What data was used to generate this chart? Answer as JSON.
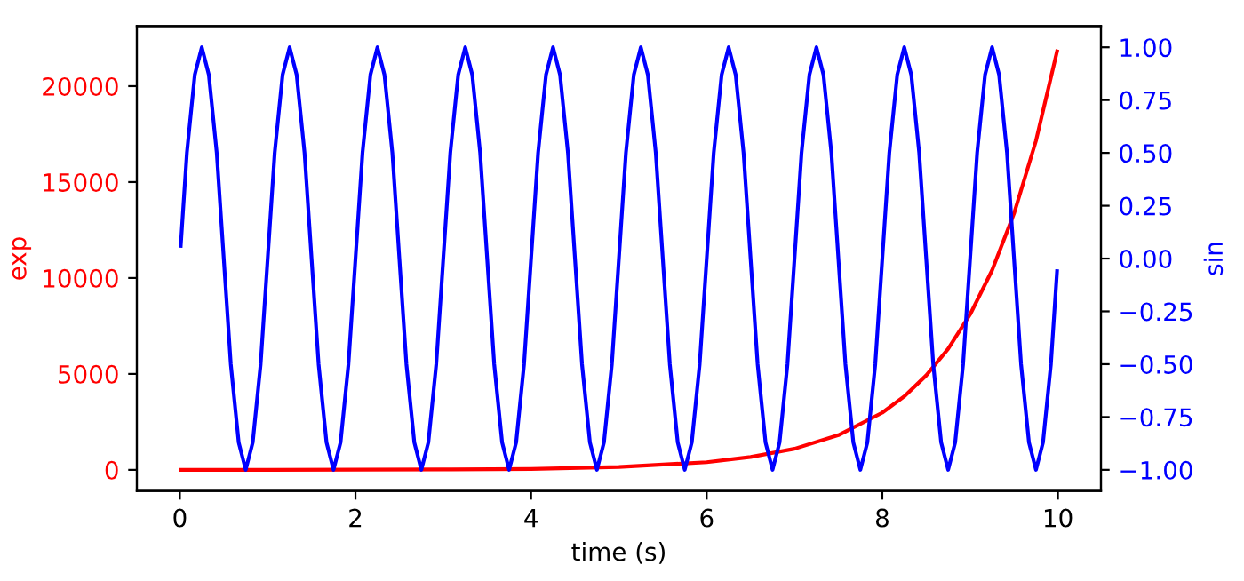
{
  "chart_data": {
    "type": "line",
    "xlabel": "time (s)",
    "ylabel": "exp",
    "y2label": "sin",
    "xlim": [
      -0.49,
      10.49
    ],
    "xticks": [
      0,
      2,
      4,
      6,
      8,
      10
    ],
    "ylim": [
      -1100,
      23127
    ],
    "yticks": [
      0,
      5000,
      10000,
      15000,
      20000
    ],
    "y2lim": [
      -1.1,
      1.1
    ],
    "y2ticks": [
      {
        "value": -1,
        "label": "−1.00"
      },
      {
        "value": -0.75,
        "label": "−0.75"
      },
      {
        "value": -0.5,
        "label": "−0.50"
      },
      {
        "value": -0.25,
        "label": "−0.25"
      },
      {
        "value": 0,
        "label": "0.00"
      },
      {
        "value": 0.25,
        "label": "0.25"
      },
      {
        "value": 0.5,
        "label": "0.50"
      },
      {
        "value": 0.75,
        "label": "0.75"
      },
      {
        "value": 1,
        "label": "1.00"
      }
    ],
    "grid": false,
    "series": [
      {
        "color": "#ff0000",
        "x": [
          0.01,
          1,
          2,
          3,
          4,
          5,
          6,
          6.5,
          7,
          7.5,
          8,
          8.25,
          8.5,
          8.75,
          9,
          9.25,
          9.5,
          9.75,
          9.99
        ],
        "values": [
          0,
          0,
          10,
          20,
          50,
          150,
          400,
          670,
          1100,
          1810,
          2980,
          3830,
          4920,
          6310,
          8100,
          10400,
          13360,
          17150,
          21810
        ]
      },
      {
        "color": "#0000ff",
        "axis": "y2",
        "x": [
          0.01,
          0.08,
          0.17,
          0.25,
          0.33,
          0.42,
          0.5,
          0.58,
          0.67,
          0.75,
          0.83,
          0.92,
          1,
          1.08,
          1.17,
          1.25,
          1.33,
          1.42,
          1.5,
          1.58,
          1.67,
          1.75,
          1.83,
          1.92,
          2,
          2.08,
          2.17,
          2.25,
          2.33,
          2.42,
          2.5,
          2.58,
          2.67,
          2.75,
          2.83,
          2.92,
          3,
          3.08,
          3.17,
          3.25,
          3.33,
          3.42,
          3.5,
          3.58,
          3.67,
          3.75,
          3.83,
          3.92,
          4,
          4.08,
          4.17,
          4.25,
          4.33,
          4.42,
          4.5,
          4.58,
          4.67,
          4.75,
          4.83,
          4.92,
          5,
          5.08,
          5.17,
          5.25,
          5.33,
          5.42,
          5.5,
          5.58,
          5.67,
          5.75,
          5.83,
          5.92,
          6,
          6.08,
          6.17,
          6.25,
          6.33,
          6.42,
          6.5,
          6.58,
          6.67,
          6.75,
          6.83,
          6.92,
          7,
          7.08,
          7.17,
          7.25,
          7.33,
          7.42,
          7.5,
          7.58,
          7.67,
          7.75,
          7.83,
          7.92,
          8,
          8.08,
          8.17,
          8.25,
          8.33,
          8.42,
          8.5,
          8.58,
          8.67,
          8.75,
          8.83,
          8.92,
          9,
          9.08,
          9.17,
          9.25,
          9.33,
          9.42,
          9.5,
          9.58,
          9.67,
          9.75,
          9.83,
          9.92,
          9.99
        ],
        "values": [
          0.06,
          0.5,
          0.87,
          1,
          0.87,
          0.5,
          0,
          -0.5,
          -0.87,
          -1,
          -0.87,
          -0.5,
          0,
          0.5,
          0.87,
          1,
          0.87,
          0.5,
          0,
          -0.5,
          -0.87,
          -1,
          -0.87,
          -0.5,
          0,
          0.5,
          0.87,
          1,
          0.87,
          0.5,
          0,
          -0.5,
          -0.87,
          -1,
          -0.87,
          -0.5,
          0,
          0.5,
          0.87,
          1,
          0.87,
          0.5,
          0,
          -0.5,
          -0.87,
          -1,
          -0.87,
          -0.5,
          0,
          0.5,
          0.87,
          1,
          0.87,
          0.5,
          0,
          -0.5,
          -0.87,
          -1,
          -0.87,
          -0.5,
          0,
          0.5,
          0.87,
          1,
          0.87,
          0.5,
          0,
          -0.5,
          -0.87,
          -1,
          -0.87,
          -0.5,
          0,
          0.5,
          0.87,
          1,
          0.87,
          0.5,
          0,
          -0.5,
          -0.87,
          -1,
          -0.87,
          -0.5,
          0,
          0.5,
          0.87,
          1,
          0.87,
          0.5,
          0,
          -0.5,
          -0.87,
          -1,
          -0.87,
          -0.5,
          0,
          0.5,
          0.87,
          1,
          0.87,
          0.5,
          0,
          -0.5,
          -0.87,
          -1,
          -0.87,
          -0.5,
          0,
          0.5,
          0.87,
          1,
          0.87,
          0.5,
          0,
          -0.5,
          -0.87,
          -1,
          -0.87,
          -0.5,
          -0.06
        ]
      }
    ]
  }
}
